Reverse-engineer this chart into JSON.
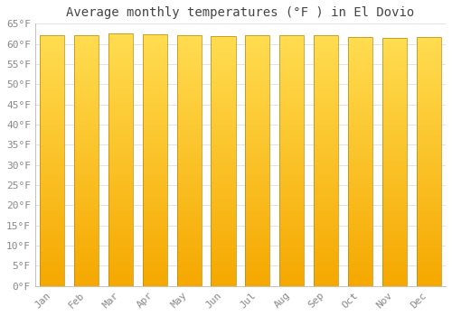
{
  "title": "Average monthly temperatures (°F ) in El Dovio",
  "months": [
    "Jan",
    "Feb",
    "Mar",
    "Apr",
    "May",
    "Jun",
    "Jul",
    "Aug",
    "Sep",
    "Oct",
    "Nov",
    "Dec"
  ],
  "values": [
    62.1,
    62.2,
    62.6,
    62.3,
    62.1,
    61.9,
    62.2,
    62.2,
    62.1,
    61.7,
    61.5,
    61.7
  ],
  "ylim": [
    0,
    65
  ],
  "yticks": [
    0,
    5,
    10,
    15,
    20,
    25,
    30,
    35,
    40,
    45,
    50,
    55,
    60,
    65
  ],
  "ytick_labels": [
    "0°F",
    "5°F",
    "10°F",
    "15°F",
    "20°F",
    "25°F",
    "30°F",
    "35°F",
    "40°F",
    "45°F",
    "50°F",
    "55°F",
    "60°F",
    "65°F"
  ],
  "bar_color_top": "#FFD966",
  "bar_color_bottom": "#F5A800",
  "bar_edge_color": "#CC8800",
  "background_color": "#FFFFFF",
  "plot_bg_color": "#FFFFFF",
  "grid_color": "#DDDDDD",
  "title_fontsize": 10,
  "tick_fontsize": 8,
  "title_color": "#444444",
  "tick_color": "#888888",
  "title_font": "monospace",
  "tick_font": "monospace",
  "bar_width": 0.72,
  "num_gradient_segments": 200
}
